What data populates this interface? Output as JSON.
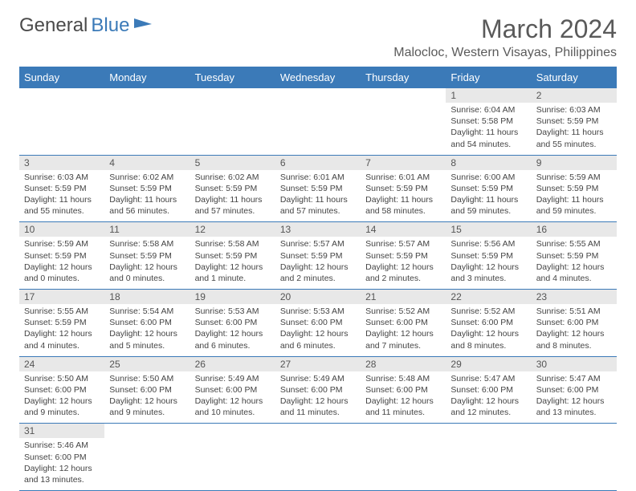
{
  "logo": {
    "text1": "General",
    "text2": "Blue"
  },
  "title": "March 2024",
  "location": "Malocloc, Western Visayas, Philippines",
  "colors": {
    "headerBg": "#3b7ab8",
    "headerText": "#ffffff",
    "dayNumBg": "#e8e8e8",
    "rowBorder": "#3b7ab8",
    "text": "#444444"
  },
  "dayNames": [
    "Sunday",
    "Monday",
    "Tuesday",
    "Wednesday",
    "Thursday",
    "Friday",
    "Saturday"
  ],
  "weeks": [
    [
      null,
      null,
      null,
      null,
      null,
      {
        "n": "1",
        "sr": "Sunrise: 6:04 AM",
        "ss": "Sunset: 5:58 PM",
        "dl": "Daylight: 11 hours and 54 minutes."
      },
      {
        "n": "2",
        "sr": "Sunrise: 6:03 AM",
        "ss": "Sunset: 5:59 PM",
        "dl": "Daylight: 11 hours and 55 minutes."
      }
    ],
    [
      {
        "n": "3",
        "sr": "Sunrise: 6:03 AM",
        "ss": "Sunset: 5:59 PM",
        "dl": "Daylight: 11 hours and 55 minutes."
      },
      {
        "n": "4",
        "sr": "Sunrise: 6:02 AM",
        "ss": "Sunset: 5:59 PM",
        "dl": "Daylight: 11 hours and 56 minutes."
      },
      {
        "n": "5",
        "sr": "Sunrise: 6:02 AM",
        "ss": "Sunset: 5:59 PM",
        "dl": "Daylight: 11 hours and 57 minutes."
      },
      {
        "n": "6",
        "sr": "Sunrise: 6:01 AM",
        "ss": "Sunset: 5:59 PM",
        "dl": "Daylight: 11 hours and 57 minutes."
      },
      {
        "n": "7",
        "sr": "Sunrise: 6:01 AM",
        "ss": "Sunset: 5:59 PM",
        "dl": "Daylight: 11 hours and 58 minutes."
      },
      {
        "n": "8",
        "sr": "Sunrise: 6:00 AM",
        "ss": "Sunset: 5:59 PM",
        "dl": "Daylight: 11 hours and 59 minutes."
      },
      {
        "n": "9",
        "sr": "Sunrise: 5:59 AM",
        "ss": "Sunset: 5:59 PM",
        "dl": "Daylight: 11 hours and 59 minutes."
      }
    ],
    [
      {
        "n": "10",
        "sr": "Sunrise: 5:59 AM",
        "ss": "Sunset: 5:59 PM",
        "dl": "Daylight: 12 hours and 0 minutes."
      },
      {
        "n": "11",
        "sr": "Sunrise: 5:58 AM",
        "ss": "Sunset: 5:59 PM",
        "dl": "Daylight: 12 hours and 0 minutes."
      },
      {
        "n": "12",
        "sr": "Sunrise: 5:58 AM",
        "ss": "Sunset: 5:59 PM",
        "dl": "Daylight: 12 hours and 1 minute."
      },
      {
        "n": "13",
        "sr": "Sunrise: 5:57 AM",
        "ss": "Sunset: 5:59 PM",
        "dl": "Daylight: 12 hours and 2 minutes."
      },
      {
        "n": "14",
        "sr": "Sunrise: 5:57 AM",
        "ss": "Sunset: 5:59 PM",
        "dl": "Daylight: 12 hours and 2 minutes."
      },
      {
        "n": "15",
        "sr": "Sunrise: 5:56 AM",
        "ss": "Sunset: 5:59 PM",
        "dl": "Daylight: 12 hours and 3 minutes."
      },
      {
        "n": "16",
        "sr": "Sunrise: 5:55 AM",
        "ss": "Sunset: 5:59 PM",
        "dl": "Daylight: 12 hours and 4 minutes."
      }
    ],
    [
      {
        "n": "17",
        "sr": "Sunrise: 5:55 AM",
        "ss": "Sunset: 5:59 PM",
        "dl": "Daylight: 12 hours and 4 minutes."
      },
      {
        "n": "18",
        "sr": "Sunrise: 5:54 AM",
        "ss": "Sunset: 6:00 PM",
        "dl": "Daylight: 12 hours and 5 minutes."
      },
      {
        "n": "19",
        "sr": "Sunrise: 5:53 AM",
        "ss": "Sunset: 6:00 PM",
        "dl": "Daylight: 12 hours and 6 minutes."
      },
      {
        "n": "20",
        "sr": "Sunrise: 5:53 AM",
        "ss": "Sunset: 6:00 PM",
        "dl": "Daylight: 12 hours and 6 minutes."
      },
      {
        "n": "21",
        "sr": "Sunrise: 5:52 AM",
        "ss": "Sunset: 6:00 PM",
        "dl": "Daylight: 12 hours and 7 minutes."
      },
      {
        "n": "22",
        "sr": "Sunrise: 5:52 AM",
        "ss": "Sunset: 6:00 PM",
        "dl": "Daylight: 12 hours and 8 minutes."
      },
      {
        "n": "23",
        "sr": "Sunrise: 5:51 AM",
        "ss": "Sunset: 6:00 PM",
        "dl": "Daylight: 12 hours and 8 minutes."
      }
    ],
    [
      {
        "n": "24",
        "sr": "Sunrise: 5:50 AM",
        "ss": "Sunset: 6:00 PM",
        "dl": "Daylight: 12 hours and 9 minutes."
      },
      {
        "n": "25",
        "sr": "Sunrise: 5:50 AM",
        "ss": "Sunset: 6:00 PM",
        "dl": "Daylight: 12 hours and 9 minutes."
      },
      {
        "n": "26",
        "sr": "Sunrise: 5:49 AM",
        "ss": "Sunset: 6:00 PM",
        "dl": "Daylight: 12 hours and 10 minutes."
      },
      {
        "n": "27",
        "sr": "Sunrise: 5:49 AM",
        "ss": "Sunset: 6:00 PM",
        "dl": "Daylight: 12 hours and 11 minutes."
      },
      {
        "n": "28",
        "sr": "Sunrise: 5:48 AM",
        "ss": "Sunset: 6:00 PM",
        "dl": "Daylight: 12 hours and 11 minutes."
      },
      {
        "n": "29",
        "sr": "Sunrise: 5:47 AM",
        "ss": "Sunset: 6:00 PM",
        "dl": "Daylight: 12 hours and 12 minutes."
      },
      {
        "n": "30",
        "sr": "Sunrise: 5:47 AM",
        "ss": "Sunset: 6:00 PM",
        "dl": "Daylight: 12 hours and 13 minutes."
      }
    ],
    [
      {
        "n": "31",
        "sr": "Sunrise: 5:46 AM",
        "ss": "Sunset: 6:00 PM",
        "dl": "Daylight: 12 hours and 13 minutes."
      },
      null,
      null,
      null,
      null,
      null,
      null
    ]
  ]
}
